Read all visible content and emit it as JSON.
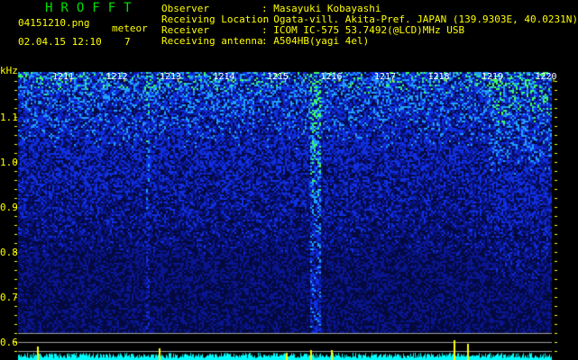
{
  "app_title": "HROFFT",
  "file_name": "04151210.png",
  "datetime": "02.04.15 12:10",
  "meteor_label": "meteor",
  "meteor_count": "7",
  "info": [
    {
      "label": "Observer",
      "value": ": Masayuki Kobayashi"
    },
    {
      "label": "Receiving Location",
      "value": ": Ogata-vill. Akita-Pref. JAPAN (139.9303E, 40.0231N)"
    },
    {
      "label": "Receiver",
      "value": ": ICOM IC-575 53.7492(@LCD)MHz USB"
    },
    {
      "label": "Receiving antenna",
      "value": ": A504HB(yagi 4el)"
    }
  ],
  "y_unit": "kHz",
  "y_ticks": [
    "1.1",
    "1.0",
    "0.9",
    "0.8",
    "0.7",
    "0.6"
  ],
  "time_ticks": [
    "1211",
    "1212",
    "1213",
    "1214",
    "1215",
    "1216",
    "1217",
    "1218",
    "1219",
    "1220"
  ],
  "colors": {
    "text": "#ffff00",
    "title": "#00e000",
    "histogram": "#00ffff",
    "spike": "#ffff00",
    "background": "#000000"
  }
}
